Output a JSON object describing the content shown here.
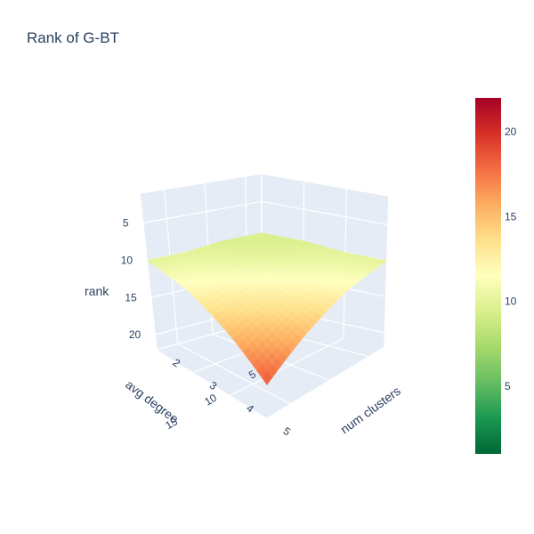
{
  "chart_data": {
    "type": "surface",
    "title": "Rank of G-BT",
    "x_axis": {
      "label": "num clusters",
      "ticks": [
        "2",
        "3",
        "4",
        "5"
      ],
      "range": [
        2,
        5
      ]
    },
    "y_axis": {
      "label": "avg degree",
      "ticks": [
        "5",
        "10",
        "15"
      ],
      "range": [
        3,
        18
      ]
    },
    "z_axis": {
      "label": "rank",
      "ticks": [
        "5",
        "10",
        "15",
        "20"
      ],
      "range": [
        1,
        22
      ],
      "reversed": true
    },
    "colorscale": {
      "name": "RdYlGn reversed",
      "range": [
        1,
        22
      ],
      "ticks": [
        "5",
        "10",
        "15",
        "20"
      ],
      "stops": [
        "#006837",
        "#1a9850",
        "#66bd63",
        "#a6d96a",
        "#d9ef8b",
        "#ffffbf",
        "#fee08b",
        "#fdae61",
        "#f46d43",
        "#d73027",
        "#a50026"
      ]
    },
    "surface": {
      "x": [
        2,
        3,
        4,
        5
      ],
      "y": [
        3,
        8,
        13,
        18
      ],
      "z": [
        [
          9.5,
          9.5,
          10,
          10
        ],
        [
          9.5,
          10,
          11,
          12
        ],
        [
          10,
          11,
          13,
          15
        ],
        [
          10,
          12,
          15,
          18.5
        ]
      ]
    }
  }
}
